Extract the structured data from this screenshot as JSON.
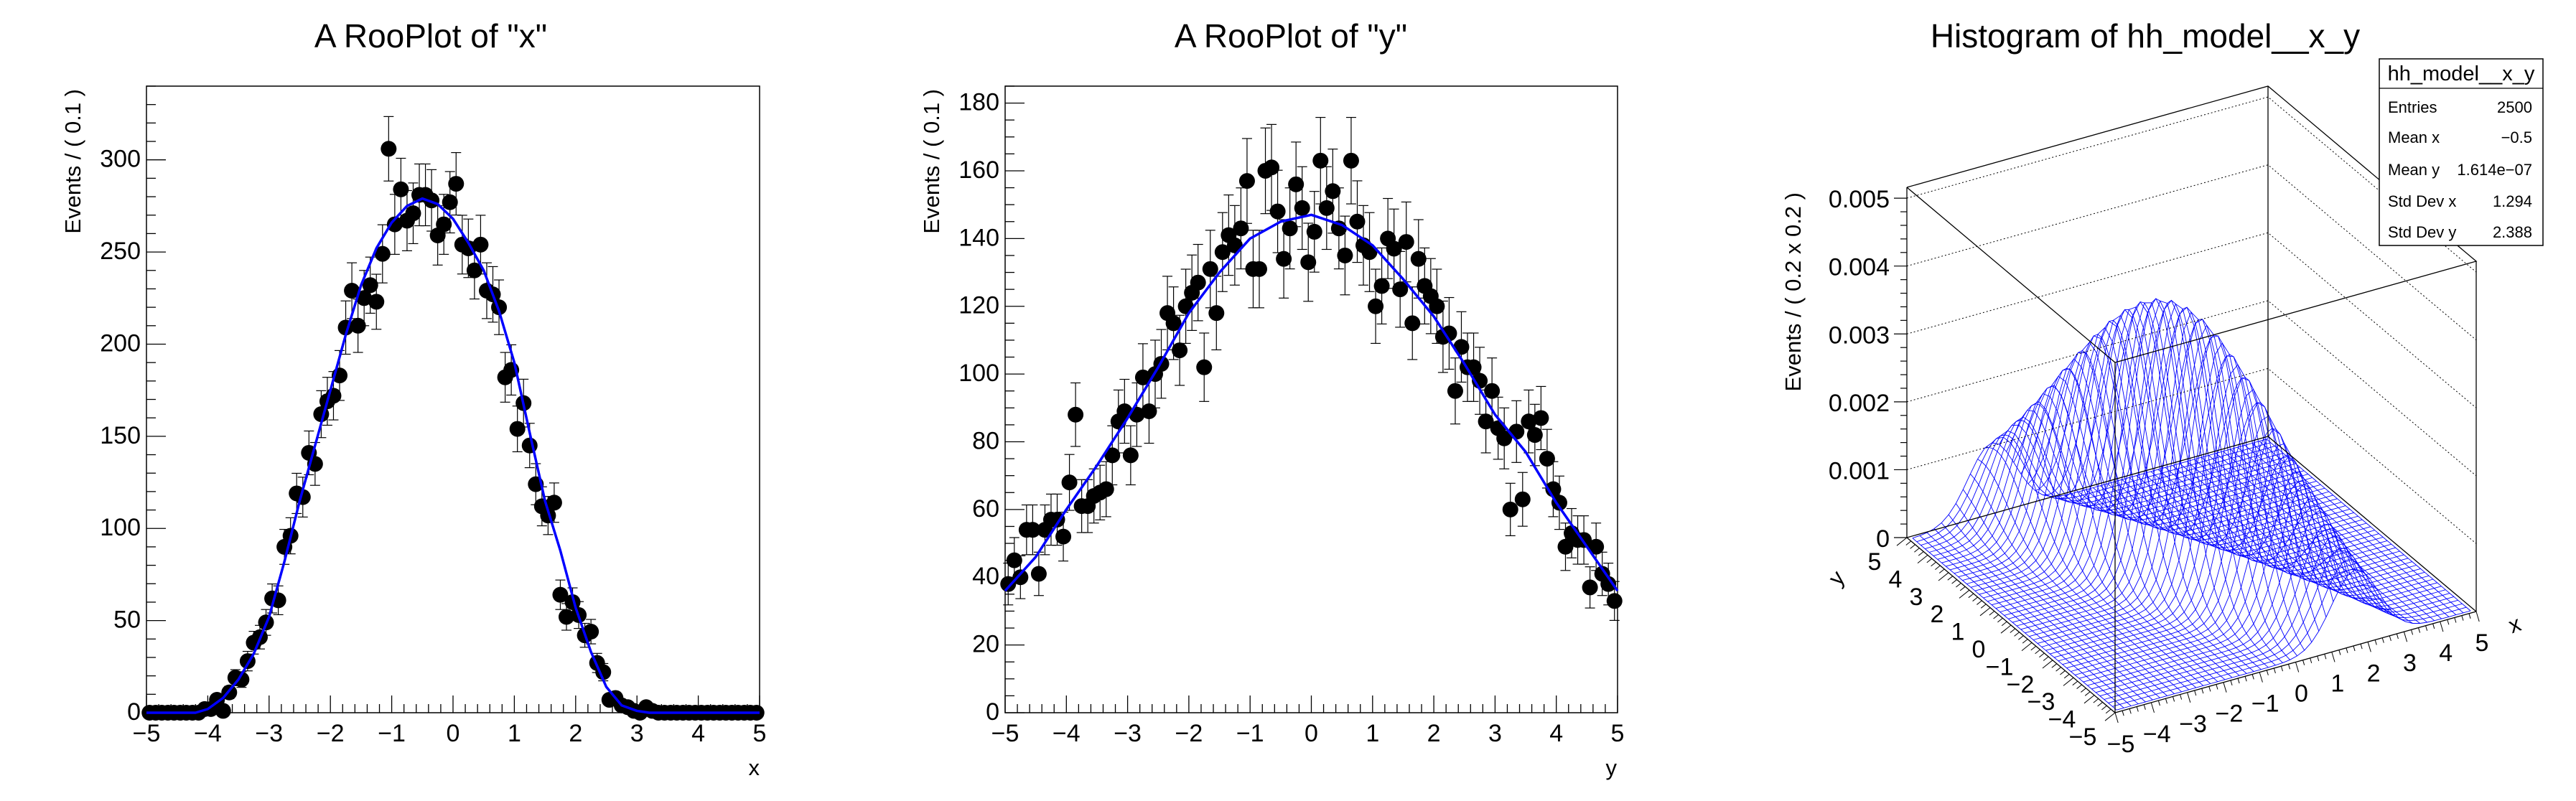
{
  "chart_data": [
    {
      "type": "scatter",
      "title": "A RooPlot of \"x\"",
      "xlabel": "x",
      "ylabel": "Events / ( 0.1 )",
      "xlim": [
        -5,
        5
      ],
      "ylim": [
        0,
        340
      ],
      "xticks": [
        -5,
        -4,
        -3,
        -2,
        -1,
        0,
        1,
        2,
        3,
        4,
        5
      ],
      "yticks": [
        0,
        50,
        100,
        150,
        200,
        250,
        300
      ],
      "grid": false,
      "marker_color": "#000000",
      "x": [
        -4.95,
        -4.85,
        -4.75,
        -4.65,
        -4.55,
        -4.45,
        -4.35,
        -4.25,
        -4.15,
        -4.05,
        -3.95,
        -3.85,
        -3.75,
        -3.65,
        -3.55,
        -3.45,
        -3.35,
        -3.25,
        -3.15,
        -3.05,
        -2.95,
        -2.85,
        -2.75,
        -2.65,
        -2.55,
        -2.45,
        -2.35,
        -2.25,
        -2.15,
        -2.05,
        -1.95,
        -1.85,
        -1.75,
        -1.65,
        -1.55,
        -1.45,
        -1.35,
        -1.25,
        -1.15,
        -1.05,
        -0.95,
        -0.85,
        -0.75,
        -0.65,
        -0.55,
        -0.45,
        -0.35,
        -0.25,
        -0.15,
        -0.05,
        0.05,
        0.15,
        0.25,
        0.35,
        0.45,
        0.55,
        0.65,
        0.75,
        0.85,
        0.95,
        1.05,
        1.15,
        1.25,
        1.35,
        1.45,
        1.55,
        1.65,
        1.75,
        1.85,
        1.95,
        2.05,
        2.15,
        2.25,
        2.35,
        2.45,
        2.55,
        2.65,
        2.75,
        2.85,
        2.95,
        3.05,
        3.15,
        3.25,
        3.35,
        3.45,
        3.55,
        3.65,
        3.75,
        3.85,
        3.95,
        4.05,
        4.15,
        4.25,
        4.35,
        4.45,
        4.55,
        4.65,
        4.75,
        4.85,
        4.95
      ],
      "values": [
        0,
        0,
        0,
        0,
        0,
        0,
        0,
        0,
        0,
        2,
        2,
        7,
        1,
        11,
        19,
        18,
        28,
        38,
        41,
        49,
        62,
        61,
        90,
        96,
        119,
        117,
        141,
        135,
        162,
        169,
        172,
        183,
        209,
        229,
        210,
        225,
        232,
        223,
        249,
        306,
        265,
        284,
        267,
        271,
        281,
        281,
        278,
        259,
        265,
        277,
        287,
        254,
        252,
        240,
        254,
        229,
        227,
        220,
        182,
        186,
        154,
        168,
        145,
        124,
        112,
        107,
        114,
        64,
        52,
        60,
        53,
        42,
        44,
        27,
        22,
        7,
        8,
        4,
        3,
        1,
        0,
        3,
        1,
        0,
        0,
        0,
        0,
        0,
        0,
        0,
        0,
        0,
        0,
        0,
        0,
        0,
        0,
        0,
        0,
        0
      ],
      "curve": {
        "color": "#0000ff",
        "x": [
          -5,
          -4.5,
          -4.2,
          -4,
          -3.75,
          -3.5,
          -3.25,
          -3,
          -2.75,
          -2.5,
          -2.25,
          -2,
          -1.75,
          -1.5,
          -1.25,
          -1,
          -0.75,
          -0.5,
          -0.25,
          0,
          0.25,
          0.5,
          0.75,
          1,
          1.25,
          1.5,
          1.75,
          2,
          2.25,
          2.5,
          2.75,
          3,
          3.2,
          3.5,
          5
        ],
        "y": [
          0,
          0,
          0,
          2,
          8,
          18,
          32,
          52,
          82,
          115,
          145,
          175,
          205,
          232,
          252,
          266,
          275,
          279,
          276,
          268,
          255,
          240,
          218,
          190,
          152,
          115,
          88,
          57,
          33,
          14,
          4,
          1,
          0,
          0,
          0
        ]
      }
    },
    {
      "type": "scatter",
      "title": "A RooPlot of \"y\"",
      "xlabel": "y",
      "ylabel": "Events / ( 0.1 )",
      "xlim": [
        -5,
        5
      ],
      "ylim": [
        0,
        185
      ],
      "xticks": [
        -5,
        -4,
        -3,
        -2,
        -1,
        0,
        1,
        2,
        3,
        4,
        5
      ],
      "yticks": [
        0,
        20,
        40,
        60,
        80,
        100,
        120,
        140,
        160,
        180
      ],
      "grid": false,
      "marker_color": "#000000",
      "x": [
        -4.95,
        -4.85,
        -4.75,
        -4.65,
        -4.55,
        -4.45,
        -4.35,
        -4.25,
        -4.15,
        -4.05,
        -3.95,
        -3.85,
        -3.75,
        -3.65,
        -3.55,
        -3.45,
        -3.35,
        -3.25,
        -3.15,
        -3.05,
        -2.95,
        -2.85,
        -2.75,
        -2.65,
        -2.55,
        -2.45,
        -2.35,
        -2.25,
        -2.15,
        -2.05,
        -1.95,
        -1.85,
        -1.75,
        -1.65,
        -1.55,
        -1.45,
        -1.35,
        -1.25,
        -1.15,
        -1.05,
        -0.95,
        -0.85,
        -0.75,
        -0.65,
        -0.55,
        -0.45,
        -0.35,
        -0.25,
        -0.15,
        -0.05,
        0.05,
        0.15,
        0.25,
        0.35,
        0.45,
        0.55,
        0.65,
        0.75,
        0.85,
        0.95,
        1.05,
        1.15,
        1.25,
        1.35,
        1.45,
        1.55,
        1.65,
        1.75,
        1.85,
        1.95,
        2.05,
        2.15,
        2.25,
        2.35,
        2.45,
        2.55,
        2.65,
        2.75,
        2.85,
        2.95,
        3.05,
        3.15,
        3.25,
        3.35,
        3.45,
        3.55,
        3.65,
        3.75,
        3.85,
        3.95,
        4.05,
        4.15,
        4.25,
        4.35,
        4.45,
        4.55,
        4.65,
        4.75,
        4.85,
        4.95
      ],
      "values": [
        38,
        45,
        40,
        54,
        54,
        41,
        54,
        57,
        57,
        52,
        68,
        88,
        61,
        61,
        64,
        65,
        66,
        76,
        86,
        89,
        76,
        88,
        99,
        89,
        100,
        103,
        118,
        115,
        107,
        120,
        124,
        127,
        102,
        131,
        118,
        136,
        141,
        138,
        143,
        157,
        131,
        131,
        160,
        161,
        148,
        134,
        143,
        156,
        149,
        133,
        142,
        163,
        149,
        154,
        143,
        135,
        163,
        145,
        138,
        136,
        120,
        126,
        140,
        137,
        125,
        139,
        115,
        134,
        126,
        123,
        120,
        111,
        112,
        95,
        108,
        102,
        102,
        98,
        86,
        95,
        84,
        81,
        60,
        83,
        63,
        86,
        82,
        87,
        75,
        66,
        62,
        49,
        53,
        51,
        51,
        37,
        49,
        41,
        38,
        33
      ],
      "curve": {
        "color": "#0000ff",
        "x": [
          -5,
          -4.5,
          -4,
          -3.5,
          -3,
          -2.5,
          -2,
          -1.5,
          -1,
          -0.5,
          0,
          0.5,
          1,
          1.5,
          2,
          2.5,
          3,
          3.5,
          4,
          4.5,
          5
        ],
        "y": [
          36,
          46,
          60,
          73,
          87,
          102,
          118,
          130,
          140,
          145,
          147,
          144,
          138,
          128,
          117,
          103,
          88,
          77,
          62,
          49,
          36
        ]
      }
    },
    {
      "type": "surface",
      "title": "Histogram of hh_model__x_y",
      "xlabel": "x",
      "ylabel": "y",
      "zlabel": "Events / ( 0.2 x 0.2 )",
      "xlim": [
        -5,
        5
      ],
      "ylim": [
        -5,
        5
      ],
      "zlim": [
        0,
        0.00516
      ],
      "bins": [
        50,
        50
      ],
      "xticks": [
        -5,
        -4,
        -3,
        -2,
        -1,
        0,
        1,
        2,
        3,
        4,
        5
      ],
      "yticks": [
        -5,
        -4,
        -3,
        -2,
        -1,
        0,
        1,
        2,
        3,
        4,
        5
      ],
      "zticks": [
        "0",
        "0.001",
        "0.002",
        "0.003",
        "0.004",
        "0.005"
      ],
      "peak_z": 0.0041,
      "mesh_color": "#0000ff",
      "stats": {
        "name": "hh_model__x_y",
        "rows": [
          {
            "label": "Entries",
            "value": "2500"
          },
          {
            "label": "Mean x",
            "value": "−0.5"
          },
          {
            "label": "Mean y",
            "value": "1.614e−07"
          },
          {
            "label": "Std Dev x",
            "value": "1.294"
          },
          {
            "label": "Std Dev y",
            "value": "2.388"
          }
        ]
      }
    }
  ]
}
